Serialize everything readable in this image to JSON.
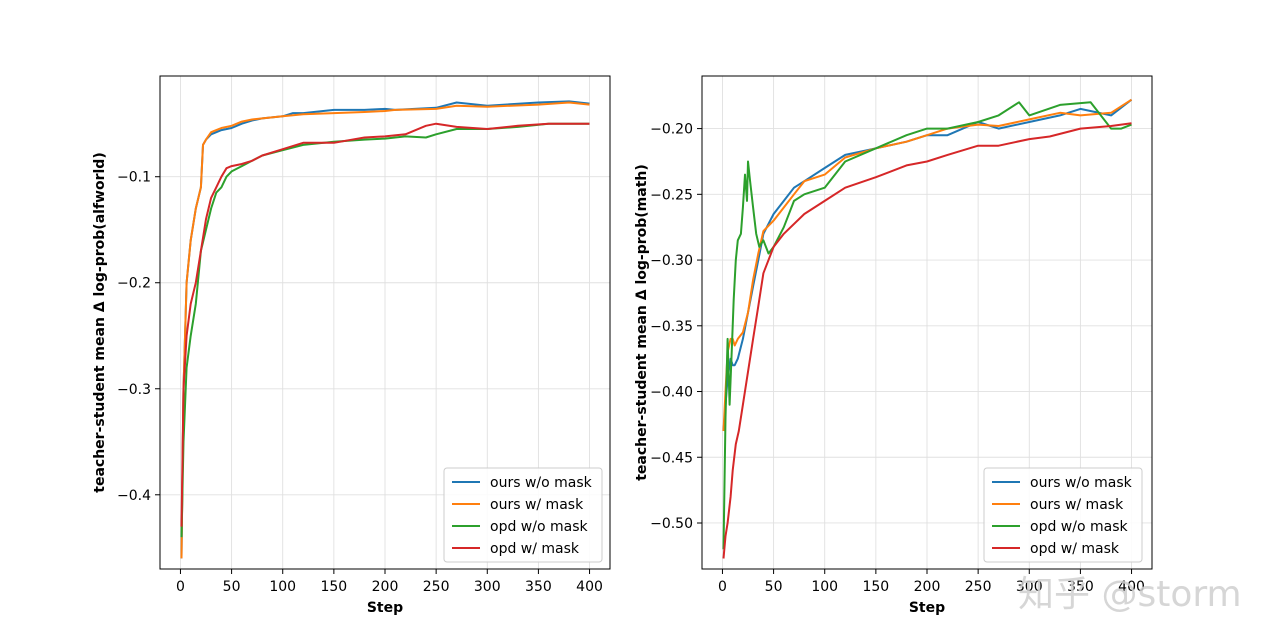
{
  "watermark": "知乎 @storm",
  "xlabel": "Step",
  "colors": {
    "ours w/o mask": "#1f77b4",
    "ours w/ mask": "#ff7f0e",
    "opd w/o mask": "#2ca02c",
    "opd w/ mask": "#d62728"
  },
  "chart_data": [
    {
      "type": "line",
      "title": "",
      "xlabel": "Step",
      "ylabel": "teacher-student mean Δ log-prob(alfworld)",
      "xlim": [
        -20,
        420
      ],
      "ylim": [
        -0.47,
        -0.005
      ],
      "xticks": [
        0,
        50,
        100,
        150,
        200,
        250,
        300,
        350,
        400
      ],
      "yticks": [
        -0.4,
        -0.3,
        -0.2,
        -0.1
      ],
      "ytick_labels": [
        "−0.4",
        "−0.3",
        "−0.2",
        "−0.1"
      ],
      "grid": true,
      "legend": "bottom-right",
      "series": [
        {
          "name": "ours w/o mask",
          "color": "#1f77b4",
          "x": [
            1,
            3,
            6,
            10,
            15,
            20,
            22,
            25,
            30,
            35,
            40,
            50,
            60,
            70,
            80,
            100,
            110,
            120,
            150,
            180,
            200,
            210,
            250,
            270,
            300,
            350,
            380,
            400
          ],
          "y": [
            -0.46,
            -0.3,
            -0.2,
            -0.16,
            -0.13,
            -0.11,
            -0.07,
            -0.065,
            -0.06,
            -0.058,
            -0.056,
            -0.054,
            -0.05,
            -0.047,
            -0.045,
            -0.043,
            -0.04,
            -0.04,
            -0.037,
            -0.037,
            -0.036,
            -0.037,
            -0.035,
            -0.03,
            -0.033,
            -0.03,
            -0.029,
            -0.031
          ]
        },
        {
          "name": "ours w/ mask",
          "color": "#ff7f0e",
          "x": [
            1,
            3,
            6,
            10,
            15,
            20,
            22,
            25,
            30,
            35,
            40,
            50,
            60,
            70,
            80,
            100,
            110,
            120,
            150,
            180,
            200,
            210,
            250,
            270,
            300,
            350,
            380,
            400
          ],
          "y": [
            -0.46,
            -0.3,
            -0.2,
            -0.16,
            -0.13,
            -0.11,
            -0.07,
            -0.065,
            -0.058,
            -0.056,
            -0.054,
            -0.052,
            -0.048,
            -0.046,
            -0.045,
            -0.043,
            -0.042,
            -0.041,
            -0.04,
            -0.039,
            -0.038,
            -0.037,
            -0.036,
            -0.033,
            -0.034,
            -0.032,
            -0.03,
            -0.032
          ]
        },
        {
          "name": "opd w/o mask",
          "color": "#2ca02c",
          "x": [
            1,
            3,
            6,
            10,
            15,
            20,
            25,
            30,
            35,
            40,
            45,
            50,
            60,
            70,
            80,
            100,
            120,
            150,
            180,
            200,
            220,
            240,
            250,
            270,
            300,
            330,
            360,
            400
          ],
          "y": [
            -0.44,
            -0.35,
            -0.28,
            -0.25,
            -0.22,
            -0.17,
            -0.15,
            -0.13,
            -0.115,
            -0.11,
            -0.1,
            -0.095,
            -0.09,
            -0.085,
            -0.08,
            -0.075,
            -0.07,
            -0.067,
            -0.065,
            -0.064,
            -0.062,
            -0.063,
            -0.06,
            -0.055,
            -0.055,
            -0.053,
            -0.05,
            -0.05
          ]
        },
        {
          "name": "opd w/ mask",
          "color": "#d62728",
          "x": [
            1,
            3,
            6,
            10,
            15,
            20,
            25,
            30,
            35,
            40,
            45,
            50,
            60,
            70,
            80,
            100,
            120,
            150,
            180,
            200,
            220,
            240,
            250,
            270,
            300,
            330,
            360,
            400
          ],
          "y": [
            -0.43,
            -0.3,
            -0.25,
            -0.22,
            -0.2,
            -0.17,
            -0.14,
            -0.12,
            -0.11,
            -0.1,
            -0.092,
            -0.09,
            -0.088,
            -0.085,
            -0.08,
            -0.074,
            -0.068,
            -0.068,
            -0.063,
            -0.062,
            -0.06,
            -0.052,
            -0.05,
            -0.053,
            -0.055,
            -0.052,
            -0.05,
            -0.05
          ]
        }
      ]
    },
    {
      "type": "line",
      "title": "",
      "xlabel": "Step",
      "ylabel": "teacher-student mean Δ log-prob(math)",
      "xlim": [
        -20,
        420
      ],
      "ylim": [
        -0.535,
        -0.16
      ],
      "xticks": [
        0,
        50,
        100,
        150,
        200,
        250,
        300,
        350,
        400
      ],
      "yticks": [
        -0.5,
        -0.45,
        -0.4,
        -0.35,
        -0.3,
        -0.25,
        -0.2
      ],
      "ytick_labels": [
        "−0.50",
        "−0.45",
        "−0.40",
        "−0.35",
        "−0.30",
        "−0.25",
        "−0.20"
      ],
      "grid": true,
      "legend": "bottom-right",
      "series": [
        {
          "name": "ours w/o mask",
          "color": "#1f77b4",
          "x": [
            1,
            3,
            5,
            8,
            10,
            12,
            15,
            20,
            25,
            30,
            35,
            40,
            50,
            60,
            70,
            80,
            100,
            120,
            150,
            180,
            200,
            220,
            250,
            270,
            300,
            330,
            350,
            380,
            400
          ],
          "y": [
            -0.43,
            -0.41,
            -0.39,
            -0.375,
            -0.38,
            -0.38,
            -0.375,
            -0.36,
            -0.34,
            -0.32,
            -0.3,
            -0.28,
            -0.265,
            -0.255,
            -0.245,
            -0.24,
            -0.23,
            -0.22,
            -0.215,
            -0.21,
            -0.205,
            -0.205,
            -0.195,
            -0.2,
            -0.195,
            -0.19,
            -0.185,
            -0.19,
            -0.178
          ]
        },
        {
          "name": "ours w/ mask",
          "color": "#ff7f0e",
          "x": [
            1,
            3,
            5,
            8,
            10,
            12,
            15,
            20,
            25,
            30,
            35,
            40,
            50,
            60,
            70,
            80,
            100,
            120,
            150,
            180,
            200,
            220,
            250,
            270,
            300,
            330,
            350,
            380,
            400
          ],
          "y": [
            -0.43,
            -0.4,
            -0.37,
            -0.36,
            -0.36,
            -0.365,
            -0.36,
            -0.355,
            -0.34,
            -0.315,
            -0.295,
            -0.278,
            -0.27,
            -0.26,
            -0.25,
            -0.24,
            -0.235,
            -0.222,
            -0.215,
            -0.21,
            -0.205,
            -0.2,
            -0.197,
            -0.198,
            -0.193,
            -0.188,
            -0.19,
            -0.188,
            -0.178
          ]
        },
        {
          "name": "opd w/o mask",
          "color": "#2ca02c",
          "x": [
            1,
            3,
            5,
            7,
            9,
            11,
            13,
            15,
            18,
            20,
            22,
            24,
            25,
            27,
            30,
            33,
            36,
            40,
            45,
            50,
            60,
            70,
            80,
            100,
            120,
            150,
            180,
            200,
            220,
            250,
            270,
            290,
            300,
            330,
            360,
            380,
            390,
            400
          ],
          "y": [
            -0.52,
            -0.42,
            -0.36,
            -0.41,
            -0.37,
            -0.33,
            -0.3,
            -0.285,
            -0.28,
            -0.26,
            -0.235,
            -0.255,
            -0.225,
            -0.24,
            -0.26,
            -0.28,
            -0.29,
            -0.285,
            -0.295,
            -0.29,
            -0.275,
            -0.255,
            -0.25,
            -0.245,
            -0.225,
            -0.215,
            -0.205,
            -0.2,
            -0.2,
            -0.195,
            -0.19,
            -0.18,
            -0.19,
            -0.182,
            -0.18,
            -0.2,
            -0.2,
            -0.197
          ]
        },
        {
          "name": "opd w/ mask",
          "color": "#d62728",
          "x": [
            1,
            3,
            5,
            8,
            10,
            13,
            16,
            20,
            25,
            30,
            35,
            40,
            50,
            60,
            80,
            100,
            120,
            150,
            180,
            200,
            220,
            250,
            270,
            300,
            320,
            350,
            380,
            400
          ],
          "y": [
            -0.527,
            -0.51,
            -0.5,
            -0.48,
            -0.46,
            -0.44,
            -0.43,
            -0.41,
            -0.385,
            -0.36,
            -0.335,
            -0.31,
            -0.29,
            -0.28,
            -0.265,
            -0.255,
            -0.245,
            -0.237,
            -0.228,
            -0.225,
            -0.22,
            -0.213,
            -0.213,
            -0.208,
            -0.206,
            -0.2,
            -0.198,
            -0.196
          ]
        }
      ]
    }
  ]
}
